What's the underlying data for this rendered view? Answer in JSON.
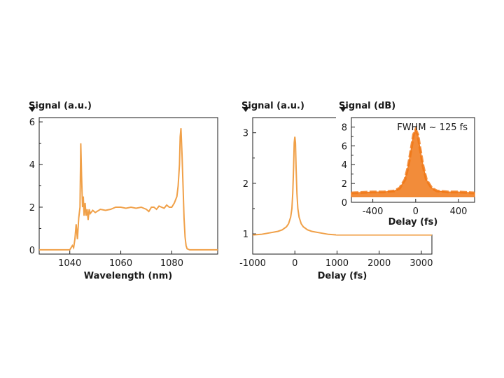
{
  "chart_data": [
    {
      "type": "line",
      "ylabel": "Signal (a.u.)",
      "xlabel": "Wavelength (nm)",
      "xlim": [
        1028,
        1098
      ],
      "ylim": [
        -0.2,
        6.2
      ],
      "xticks": [
        "1040",
        "1060",
        "1080"
      ],
      "yticks": [
        "0",
        "2",
        "4",
        "6"
      ],
      "xtick_values": [
        1040,
        1060,
        1080
      ],
      "ytick_values": [
        0,
        2,
        4,
        6
      ],
      "color": "#f0a048",
      "series": [
        {
          "x": [
            1028,
            1040,
            1041,
            1041.5,
            1042,
            1042.5,
            1043,
            1043.5,
            1044,
            1044.3,
            1044.6,
            1045,
            1045.3,
            1045.6,
            1046,
            1046.4,
            1046.8,
            1047.2,
            1047.6,
            1048,
            1049,
            1050,
            1052,
            1054,
            1056,
            1058,
            1060,
            1062,
            1064,
            1066,
            1068,
            1070,
            1071,
            1072,
            1073,
            1074,
            1075,
            1076,
            1077,
            1078,
            1079,
            1080,
            1081,
            1082,
            1082.5,
            1083,
            1083.3,
            1083.6,
            1084,
            1084.4,
            1084.8,
            1085.2,
            1085.6,
            1086,
            1087,
            1088,
            1090,
            1095,
            1098
          ],
          "y": [
            0,
            0,
            0.2,
            0.1,
            0.5,
            1.2,
            0.5,
            1.5,
            2.0,
            5.0,
            3.5,
            2.0,
            2.5,
            1.6,
            2.2,
            1.6,
            1.9,
            1.4,
            1.9,
            1.7,
            1.85,
            1.75,
            1.9,
            1.85,
            1.9,
            2.0,
            2.0,
            1.95,
            2.0,
            1.95,
            2.0,
            1.9,
            1.8,
            2.0,
            2.0,
            1.9,
            2.05,
            2.0,
            1.95,
            2.1,
            2.0,
            2.0,
            2.2,
            2.5,
            3.0,
            4.0,
            5.3,
            5.7,
            4.5,
            3.0,
            1.5,
            0.6,
            0.2,
            0.05,
            0,
            0,
            0,
            0,
            0
          ]
        }
      ]
    },
    {
      "type": "line",
      "ylabel": "Signal (a.u.)",
      "xlabel": "Delay (fs)",
      "xlim": [
        -1000,
        3250
      ],
      "ylim": [
        0.6,
        3.3
      ],
      "xticks": [
        "-1000",
        "0",
        "1000",
        "2000",
        "3000"
      ],
      "yticks": [
        "1",
        "2",
        "3"
      ],
      "xtick_values": [
        -1000,
        0,
        1000,
        2000,
        3000
      ],
      "ytick_values": [
        1,
        2,
        3
      ],
      "color": "#f0a048",
      "series": [
        {
          "x": [
            -1000,
            -800,
            -600,
            -400,
            -300,
            -200,
            -150,
            -100,
            -70,
            -50,
            -30,
            -15,
            0,
            15,
            30,
            50,
            70,
            100,
            150,
            200,
            300,
            400,
            600,
            800,
            1000,
            2000,
            3000,
            3250
          ],
          "y": [
            0.98,
            0.99,
            1.02,
            1.05,
            1.08,
            1.14,
            1.2,
            1.33,
            1.5,
            1.8,
            2.3,
            2.8,
            2.92,
            2.8,
            2.3,
            1.8,
            1.5,
            1.33,
            1.2,
            1.14,
            1.08,
            1.05,
            1.02,
            0.99,
            0.98,
            0.98,
            0.98,
            0.98
          ]
        }
      ]
    },
    {
      "type": "area",
      "ylabel": "Signal (dB)",
      "xlabel": "Delay (fs)",
      "xlim": [
        -600,
        550
      ],
      "ylim": [
        0,
        9
      ],
      "xticks": [
        "-400",
        "0",
        "400"
      ],
      "yticks": [
        "0",
        "2",
        "4",
        "6",
        "8"
      ],
      "xtick_values": [
        -400,
        0,
        400
      ],
      "ytick_values": [
        0,
        2,
        4,
        6,
        8
      ],
      "annotation": "FWHM ~ 125 fs",
      "color": "#f07818",
      "series": [
        {
          "x": [
            -600,
            -400,
            -300,
            -200,
            -150,
            -100,
            -70,
            -40,
            -20,
            0,
            20,
            40,
            70,
            100,
            150,
            200,
            300,
            400,
            550
          ],
          "y": [
            1.0,
            1.1,
            1.1,
            1.2,
            1.5,
            2.4,
            3.8,
            5.8,
            7.2,
            7.7,
            7.2,
            5.8,
            3.8,
            2.4,
            1.5,
            1.2,
            1.1,
            1.1,
            1.0
          ]
        }
      ]
    }
  ]
}
